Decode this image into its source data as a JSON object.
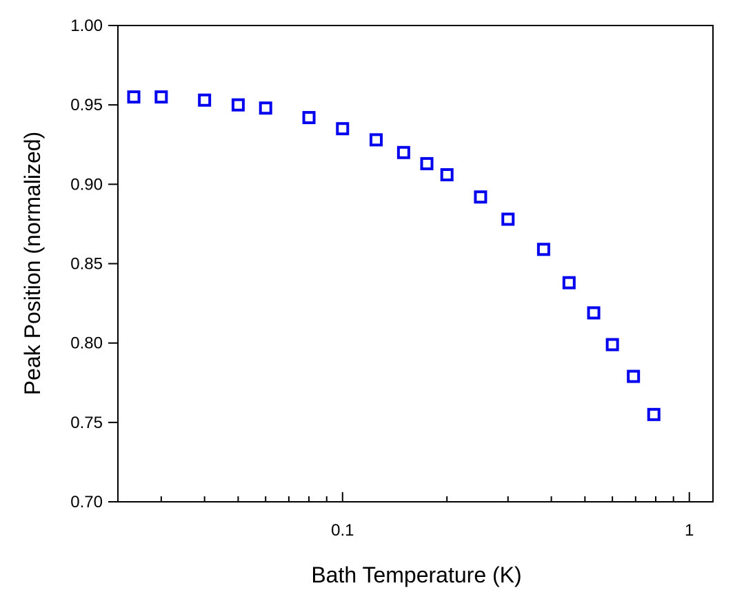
{
  "chart_data": {
    "type": "scatter",
    "title": "",
    "xlabel": "Bath Temperature  (K)",
    "ylabel": "Peak Position  (normalized)",
    "xscale": "log",
    "xlim": [
      0.0225,
      1.17
    ],
    "ylim": [
      0.7,
      1.0
    ],
    "grid": false,
    "legend": "none",
    "marker": "open-square",
    "colors": {
      "marker": "#0000ee",
      "axes": "#000000",
      "background": "#ffffff"
    },
    "x_tick_labels": [
      {
        "value": 0.1,
        "label": "0.1"
      },
      {
        "value": 1,
        "label": "1"
      }
    ],
    "x_minor_ticks": [
      0.03,
      0.04,
      0.05,
      0.06,
      0.07,
      0.08,
      0.09,
      0.2,
      0.3,
      0.4,
      0.5,
      0.6,
      0.7,
      0.8,
      0.9
    ],
    "y_tick_labels": [
      {
        "value": 0.7,
        "label": "0.70"
      },
      {
        "value": 0.75,
        "label": "0.75"
      },
      {
        "value": 0.8,
        "label": "0.80"
      },
      {
        "value": 0.85,
        "label": "0.85"
      },
      {
        "value": 0.9,
        "label": "0.90"
      },
      {
        "value": 0.95,
        "label": "0.95"
      },
      {
        "value": 1.0,
        "label": "1.00"
      }
    ],
    "series": [
      {
        "x": [
          0.025,
          0.03,
          0.04,
          0.05,
          0.06,
          0.08,
          0.1,
          0.125,
          0.15,
          0.175,
          0.2,
          0.25,
          0.3,
          0.38,
          0.45,
          0.53,
          0.6,
          0.69,
          0.79
        ],
        "y": [
          0.955,
          0.955,
          0.953,
          0.95,
          0.948,
          0.942,
          0.935,
          0.928,
          0.92,
          0.913,
          0.906,
          0.892,
          0.878,
          0.859,
          0.838,
          0.819,
          0.799,
          0.779,
          0.755
        ]
      }
    ]
  }
}
